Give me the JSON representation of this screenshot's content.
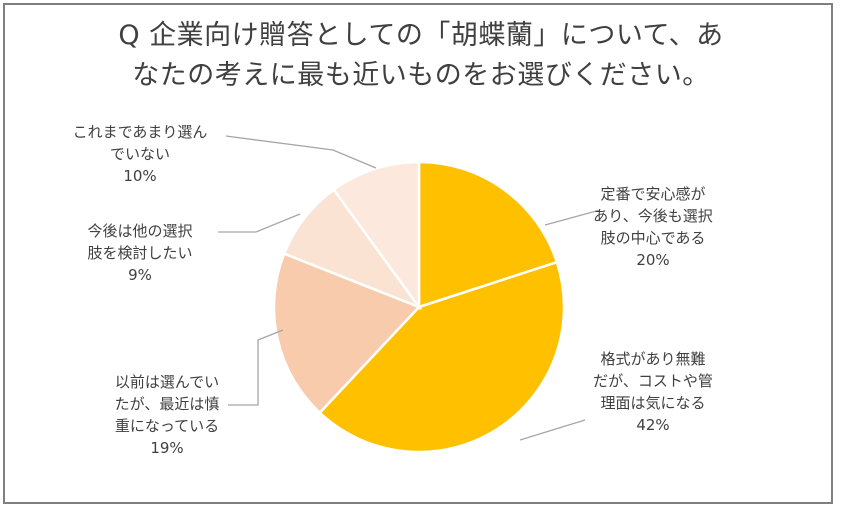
{
  "title_lines": [
    "Q  企業向け贈答としての「胡蝶蘭」について、あ",
    "なたの考えに最も近いものをお選びください。"
  ],
  "chart_data": {
    "type": "pie",
    "start_angle_deg": 0,
    "direction": "clockwise",
    "slices": [
      {
        "label_lines": [
          "定番で安心感が",
          "あり、今後も選択",
          "肢の中心である"
        ],
        "value": 20,
        "value_label": "20%",
        "color": "#FFC000"
      },
      {
        "label_lines": [
          "格式があり無難",
          "だが、コストや管",
          "理面は気になる"
        ],
        "value": 42,
        "value_label": "42%",
        "color": "#FFC000"
      },
      {
        "label_lines": [
          "以前は選んでい",
          "たが、最近は慎",
          "重になっている"
        ],
        "value": 19,
        "value_label": "19%",
        "color": "#F8CBAD"
      },
      {
        "label_lines": [
          "今後は他の選択",
          "肢を検討したい"
        ],
        "value": 9,
        "value_label": "9%",
        "color": "#FBE3D3"
      },
      {
        "label_lines": [
          "これまであまり選ん",
          "でいない"
        ],
        "value": 10,
        "value_label": "10%",
        "color": "#FCE8DC"
      }
    ]
  }
}
